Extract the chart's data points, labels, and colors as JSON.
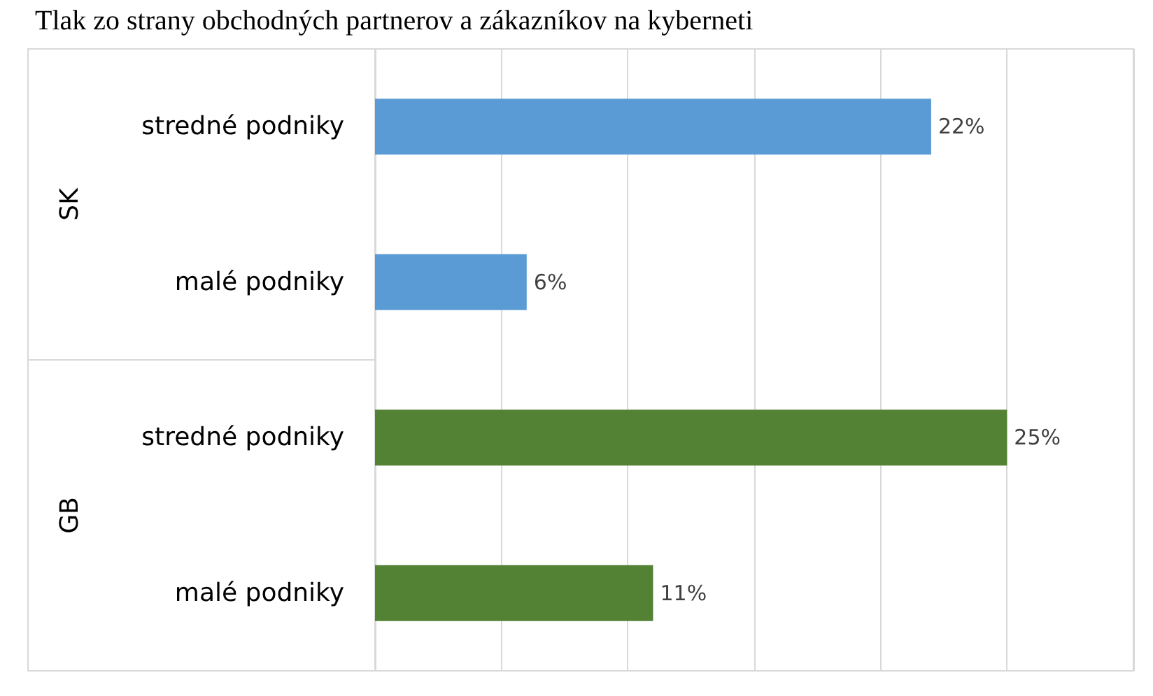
{
  "chart_data": {
    "type": "bar",
    "orientation": "horizontal",
    "stacked": true,
    "title": "Tlak zo strany obchodných partnerov a zákazníkov na kyberneti",
    "categories": [
      "stredné podniky",
      "malé podniky",
      "stredné podniky",
      "malé podniky"
    ],
    "series": [
      {
        "color": "#5b9bd5",
        "values": [
          22,
          6,
          null,
          null
        ],
        "value_labels": [
          "22%",
          "6%",
          null,
          null
        ]
      },
      {
        "color": "#548235",
        "values": [
          null,
          null,
          25,
          11
        ],
        "value_labels": [
          null,
          null,
          "25%",
          "11%"
        ]
      }
    ],
    "xlim": [
      0,
      30
    ],
    "xticks": [
      {
        "value": 0,
        "label": null
      },
      {
        "value": 5,
        "label": null
      },
      {
        "value": 10,
        "label": null
      },
      {
        "value": 15,
        "label": null
      },
      {
        "value": 20,
        "label": null
      },
      {
        "value": 25,
        "label": null
      },
      {
        "value": 30,
        "label": null
      }
    ],
    "annotations": [
      "SK",
      "GB"
    ],
    "grid": "x",
    "tick_labels": "y"
  }
}
